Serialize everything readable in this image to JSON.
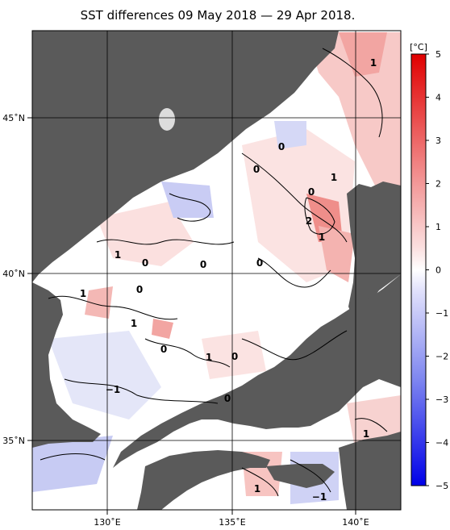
{
  "title": "SST differences 09 May 2018 — 29 Apr 2018.",
  "axes": {
    "lat_labels": [
      "45˚N",
      "40˚N",
      "35˚N"
    ],
    "lon_labels": [
      "130˚E",
      "135˚E",
      "140˚E"
    ]
  },
  "colorbar": {
    "unit": "[°C]",
    "ticks": [
      "5",
      "4",
      "3",
      "2",
      "1",
      "0",
      "−1",
      "−2",
      "−3",
      "−4",
      "−5"
    ],
    "min": -5,
    "max": 5
  },
  "contour_labels": [
    "1",
    "0",
    "1",
    "0",
    "2",
    "1",
    "1",
    "0",
    "0",
    "1",
    "0",
    "1",
    "0",
    "0",
    "1",
    "0",
    "−1",
    "0",
    "1",
    "1",
    "−1",
    "0"
  ],
  "colors": {
    "land": "#5a5a5a",
    "warm": "#e8413c",
    "cold": "#2030e8",
    "neutral": "#ffffff"
  }
}
